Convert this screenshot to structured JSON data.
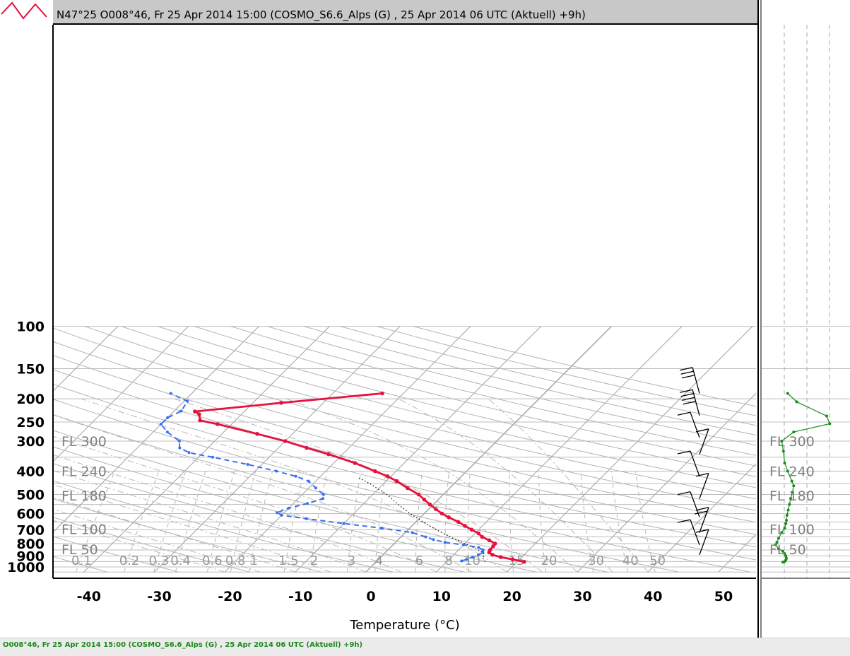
{
  "header": {
    "title": "N47°25 O008°46, Fr 25 Apr 2014 15:00 (COSMO_S6.6_Alps (G) , 25 Apr 2014 06 UTC (Aktuell) +9h)"
  },
  "footer": {
    "text": "O008°46, Fr 25 Apr 2014 15:00 (COSMO_S6.6_Alps (G) , 25 Apr 2014 06 UTC (Aktuell) +9h)"
  },
  "colors": {
    "temperature": "#e8103c",
    "dewpoint": "#3a6ff0",
    "parcel": "#000000",
    "wind": "#000000",
    "side_profile": "#1a8a1a",
    "grid": "#a8a8a8"
  },
  "chart_data": {
    "type": "line",
    "subtype": "skew-t log-p",
    "xlabel": "Temperature (°C)",
    "x_ticks": [
      -40,
      -30,
      -20,
      -10,
      0,
      10,
      20,
      30,
      40,
      50
    ],
    "y_ticks": [
      150,
      200,
      250,
      300,
      400,
      500,
      600,
      700,
      800,
      900,
      1000
    ],
    "y_top_partial_label": "100",
    "flight_levels": [
      {
        "label": "FL 300",
        "p": 300
      },
      {
        "label": "FL 240",
        "p": 400
      },
      {
        "label": "FL 180",
        "p": 505
      },
      {
        "label": "FL 100",
        "p": 697
      },
      {
        "label": "FL 50",
        "p": 845
      }
    ],
    "mixing_ratio_labels": [
      "0.1",
      "0.2",
      "0.3",
      "0.4",
      "0.6",
      "0.8",
      "1",
      "1.5",
      "2",
      "3",
      "4",
      "6",
      "8",
      "10",
      "15",
      "20",
      "30",
      "40",
      "50"
    ],
    "series": [
      {
        "name": "temperature",
        "points": [
          [
            21,
            952
          ],
          [
            19,
            930
          ],
          [
            17,
            910
          ],
          [
            15.5,
            890
          ],
          [
            14.7,
            870
          ],
          [
            14.5,
            850
          ],
          [
            14.4,
            820
          ],
          [
            14.3,
            800
          ],
          [
            13,
            775
          ],
          [
            11.5,
            750
          ],
          [
            10.5,
            725
          ],
          [
            9,
            700
          ],
          [
            7.5,
            675
          ],
          [
            6,
            650
          ],
          [
            4,
            622
          ],
          [
            2.5,
            600
          ],
          [
            1,
            575
          ],
          [
            -0.5,
            550
          ],
          [
            -2,
            525
          ],
          [
            -3.5,
            500
          ],
          [
            -6,
            470
          ],
          [
            -8.5,
            440
          ],
          [
            -10.5,
            420
          ],
          [
            -13,
            400
          ],
          [
            -17,
            370
          ],
          [
            -22,
            340
          ],
          [
            -26,
            320
          ],
          [
            -30,
            300
          ],
          [
            -35,
            280
          ],
          [
            -42,
            255
          ],
          [
            -45,
            246
          ],
          [
            -46,
            232
          ],
          [
            -47,
            226
          ],
          [
            -36,
            208
          ],
          [
            -23,
            190
          ]
        ]
      },
      {
        "name": "dewpoint",
        "points": [
          [
            12,
            944
          ],
          [
            12.5,
            930
          ],
          [
            13,
            910
          ],
          [
            13.5,
            890
          ],
          [
            13.8,
            870
          ],
          [
            13.5,
            850
          ],
          [
            12.5,
            830
          ],
          [
            10,
            810
          ],
          [
            7,
            790
          ],
          [
            5,
            770
          ],
          [
            3.5,
            750
          ],
          [
            1,
            720
          ],
          [
            -4,
            690
          ],
          [
            -10,
            660
          ],
          [
            -16,
            630
          ],
          [
            -20,
            610
          ],
          [
            -21,
            595
          ],
          [
            -20,
            570
          ],
          [
            -18,
            545
          ],
          [
            -16.5,
            520
          ],
          [
            -17,
            500
          ],
          [
            -19,
            470
          ],
          [
            -21,
            440
          ],
          [
            -23.5,
            420
          ],
          [
            -27,
            400
          ],
          [
            -32,
            375
          ],
          [
            -38,
            350
          ],
          [
            -42,
            335
          ],
          [
            -44,
            320
          ],
          [
            -45,
            300
          ],
          [
            -48,
            275
          ],
          [
            -50,
            255
          ],
          [
            -50,
            240
          ],
          [
            -49,
            225
          ],
          [
            -49.5,
            205
          ],
          [
            -53,
            190
          ]
        ]
      },
      {
        "name": "parcel",
        "points": [
          [
            15.5,
            952
          ],
          [
            15,
            935
          ],
          [
            14.5,
            915
          ],
          [
            14.4,
            890
          ],
          [
            13.8,
            870
          ],
          [
            12.8,
            850
          ],
          [
            11.5,
            825
          ],
          [
            10,
            800
          ],
          [
            8.5,
            775
          ],
          [
            7,
            750
          ],
          [
            5.5,
            725
          ],
          [
            4,
            700
          ],
          [
            2.5,
            675
          ],
          [
            1,
            650
          ],
          [
            -0.5,
            625
          ],
          [
            -2,
            600
          ],
          [
            -3.5,
            575
          ],
          [
            -5,
            550
          ],
          [
            -6.5,
            525
          ],
          [
            -8,
            500
          ],
          [
            -10,
            475
          ],
          [
            -12,
            450
          ],
          [
            -14.5,
            425
          ]
        ]
      }
    ],
    "wind_barbs": [
      {
        "p": 190,
        "speed_kt": 25
      },
      {
        "p": 235,
        "speed_kt": 35
      },
      {
        "p": 290,
        "speed_kt": 10
      },
      {
        "p": 340,
        "speed_kt": 10
      },
      {
        "p": 420,
        "speed_kt": 10
      },
      {
        "p": 520,
        "speed_kt": 10
      },
      {
        "p": 620,
        "speed_kt": 10
      },
      {
        "p": 720,
        "speed_kt": 15
      },
      {
        "p": 810,
        "speed_kt": 10
      },
      {
        "p": 890,
        "speed_kt": 10
      }
    ],
    "side_panel": {
      "name": "side profile",
      "x_ticks_unlabeled": 3,
      "flight_levels": [
        "FL 300",
        "FL 240",
        "FL 180",
        "FL 100",
        "FL 50"
      ],
      "points": [
        [
          0.35,
          190
        ],
        [
          0.5,
          206
        ],
        [
          1.0,
          236
        ],
        [
          1.05,
          254
        ],
        [
          0.45,
          275
        ],
        [
          0.25,
          300
        ],
        [
          0.28,
          330
        ],
        [
          0.3,
          370
        ],
        [
          0.35,
          400
        ],
        [
          0.42,
          440
        ],
        [
          0.45,
          460
        ],
        [
          0.43,
          490
        ],
        [
          0.4,
          520
        ],
        [
          0.38,
          550
        ],
        [
          0.36,
          580
        ],
        [
          0.34,
          610
        ],
        [
          0.33,
          640
        ],
        [
          0.32,
          660
        ],
        [
          0.3,
          690
        ],
        [
          0.25,
          720
        ],
        [
          0.2,
          760
        ],
        [
          0.17,
          790
        ],
        [
          0.15,
          810
        ],
        [
          0.2,
          840
        ],
        [
          0.27,
          860
        ],
        [
          0.3,
          880
        ],
        [
          0.32,
          900
        ],
        [
          0.33,
          920
        ],
        [
          0.32,
          935
        ],
        [
          0.3,
          950
        ],
        [
          0.27,
          955
        ]
      ]
    }
  }
}
